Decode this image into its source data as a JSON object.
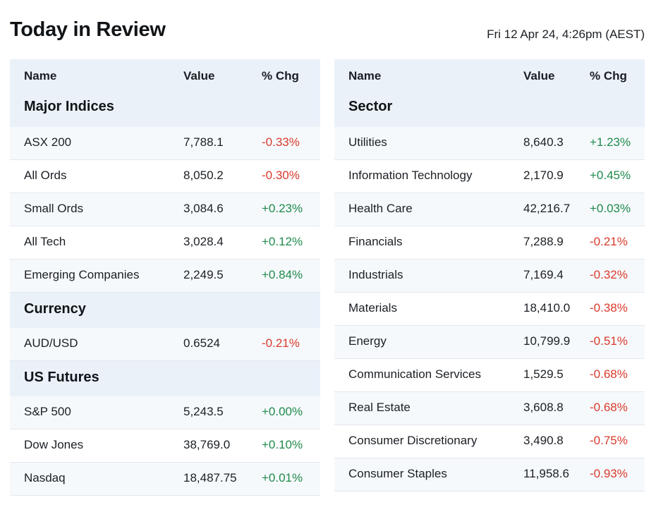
{
  "header": {
    "title": "Today in Review",
    "timestamp": "Fri 12 Apr 24, 4:26pm (AEST)"
  },
  "columns": {
    "name": "Name",
    "value": "Value",
    "chg": "% Chg"
  },
  "left": {
    "sections": [
      {
        "title": "Major Indices",
        "rows": [
          {
            "name": "ASX 200",
            "value": "7,788.1",
            "chg": "-0.33%"
          },
          {
            "name": "All Ords",
            "value": "8,050.2",
            "chg": "-0.30%"
          },
          {
            "name": "Small Ords",
            "value": "3,084.6",
            "chg": "+0.23%"
          },
          {
            "name": "All Tech",
            "value": "3,028.4",
            "chg": "+0.12%"
          },
          {
            "name": "Emerging Companies",
            "value": "2,249.5",
            "chg": "+0.84%"
          }
        ]
      },
      {
        "title": "Currency",
        "rows": [
          {
            "name": "AUD/USD",
            "value": "0.6524",
            "chg": "-0.21%"
          }
        ]
      },
      {
        "title": "US Futures",
        "rows": [
          {
            "name": "S&P 500",
            "value": "5,243.5",
            "chg": "+0.00%"
          },
          {
            "name": "Dow Jones",
            "value": "38,769.0",
            "chg": "+0.10%"
          },
          {
            "name": "Nasdaq",
            "value": "18,487.75",
            "chg": "+0.01%"
          }
        ]
      }
    ]
  },
  "right": {
    "sections": [
      {
        "title": "Sector",
        "rows": [
          {
            "name": "Utilities",
            "value": "8,640.3",
            "chg": "+1.23%"
          },
          {
            "name": "Information Technology",
            "value": "2,170.9",
            "chg": "+0.45%"
          },
          {
            "name": "Health Care",
            "value": "42,216.7",
            "chg": "+0.03%"
          },
          {
            "name": "Financials",
            "value": "7,288.9",
            "chg": "-0.21%"
          },
          {
            "name": "Industrials",
            "value": "7,169.4",
            "chg": "-0.32%"
          },
          {
            "name": "Materials",
            "value": "18,410.0",
            "chg": "-0.38%"
          },
          {
            "name": "Energy",
            "value": "10,799.9",
            "chg": "-0.51%"
          },
          {
            "name": "Communication Services",
            "value": "1,529.5",
            "chg": "-0.68%"
          },
          {
            "name": "Real Estate",
            "value": "3,608.8",
            "chg": "-0.68%"
          },
          {
            "name": "Consumer Discretionary",
            "value": "3,490.8",
            "chg": "-0.75%"
          },
          {
            "name": "Consumer Staples",
            "value": "11,958.6",
            "chg": "-0.93%"
          }
        ]
      }
    ]
  },
  "colors": {
    "negative": "#d93a2b",
    "positive": "#1f8a4c",
    "header_bg": "#eaf1f9",
    "row_shade": "#f6f9fc"
  }
}
